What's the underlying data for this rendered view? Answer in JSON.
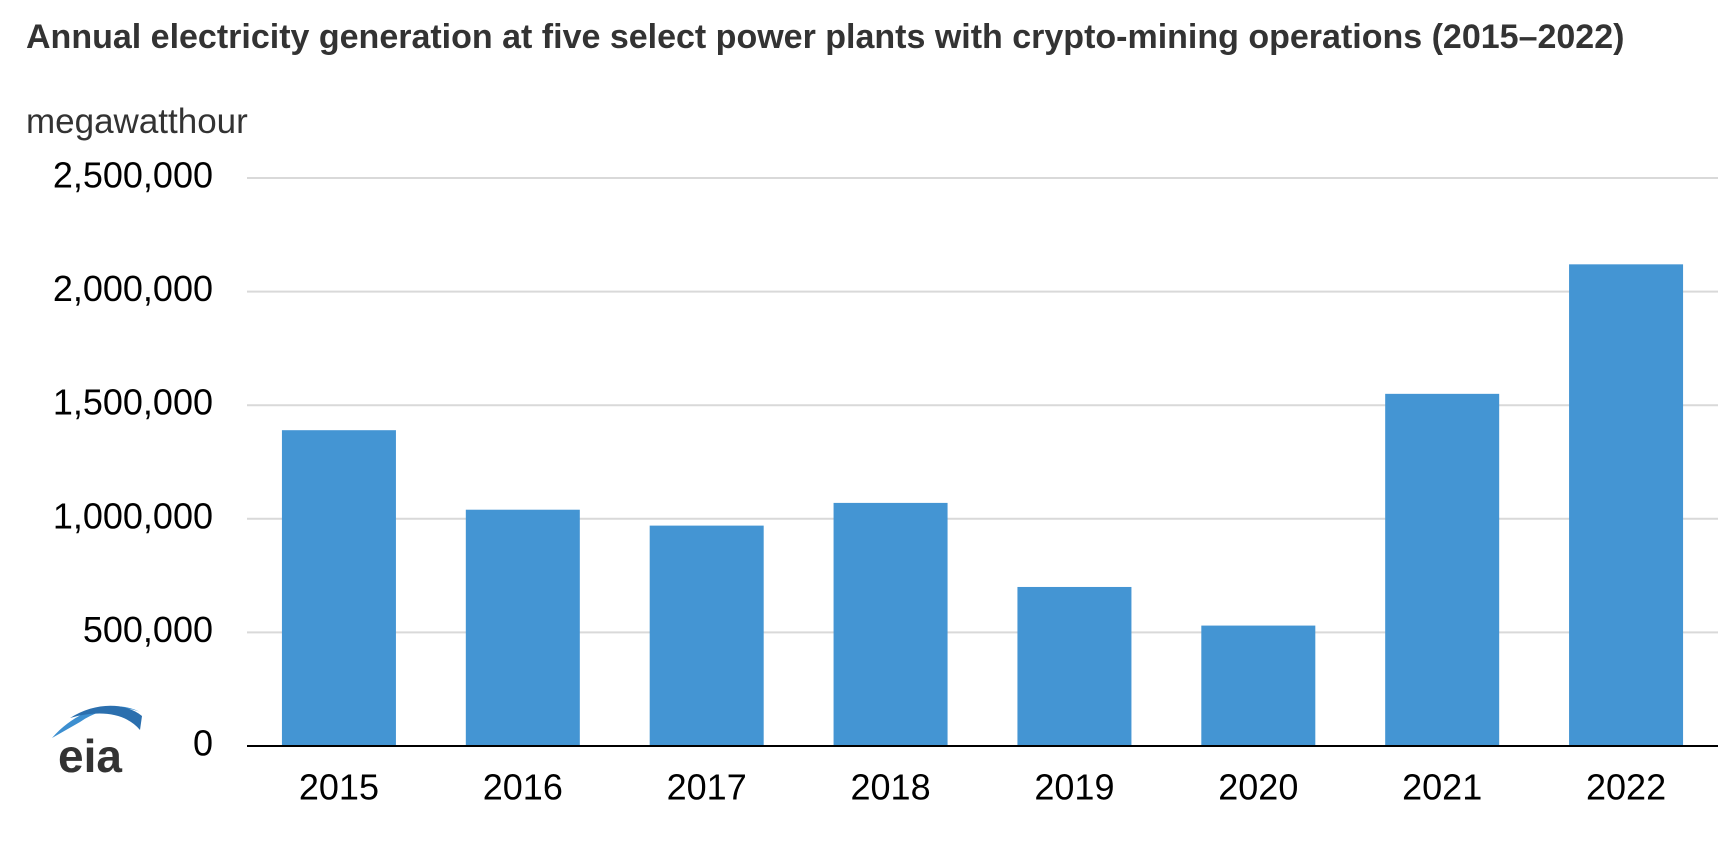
{
  "chart_data": {
    "type": "bar",
    "title": "Annual electricity generation at five select power plants with crypto-mining operations (2015–2022)",
    "subtitle": "megawatthour",
    "logo": "eia",
    "categories": [
      "2015",
      "2016",
      "2017",
      "2018",
      "2019",
      "2020",
      "2021",
      "2022"
    ],
    "values": [
      1390000,
      1040000,
      970000,
      1070000,
      700000,
      530000,
      1550000,
      2120000
    ],
    "color": "#4495d3",
    "ylim": [
      0,
      2500000
    ],
    "yticks": [
      0,
      {
        "value": 500000,
        "label": "500,000"
      },
      {
        "value": 1000000,
        "label": "1,000,000"
      },
      {
        "value": 1500000,
        "label": "1,500,000"
      },
      {
        "value": 2000000,
        "label": "2,000,000"
      },
      {
        "value": 2500000,
        "label": "2,500,000"
      }
    ],
    "grid": true
  }
}
